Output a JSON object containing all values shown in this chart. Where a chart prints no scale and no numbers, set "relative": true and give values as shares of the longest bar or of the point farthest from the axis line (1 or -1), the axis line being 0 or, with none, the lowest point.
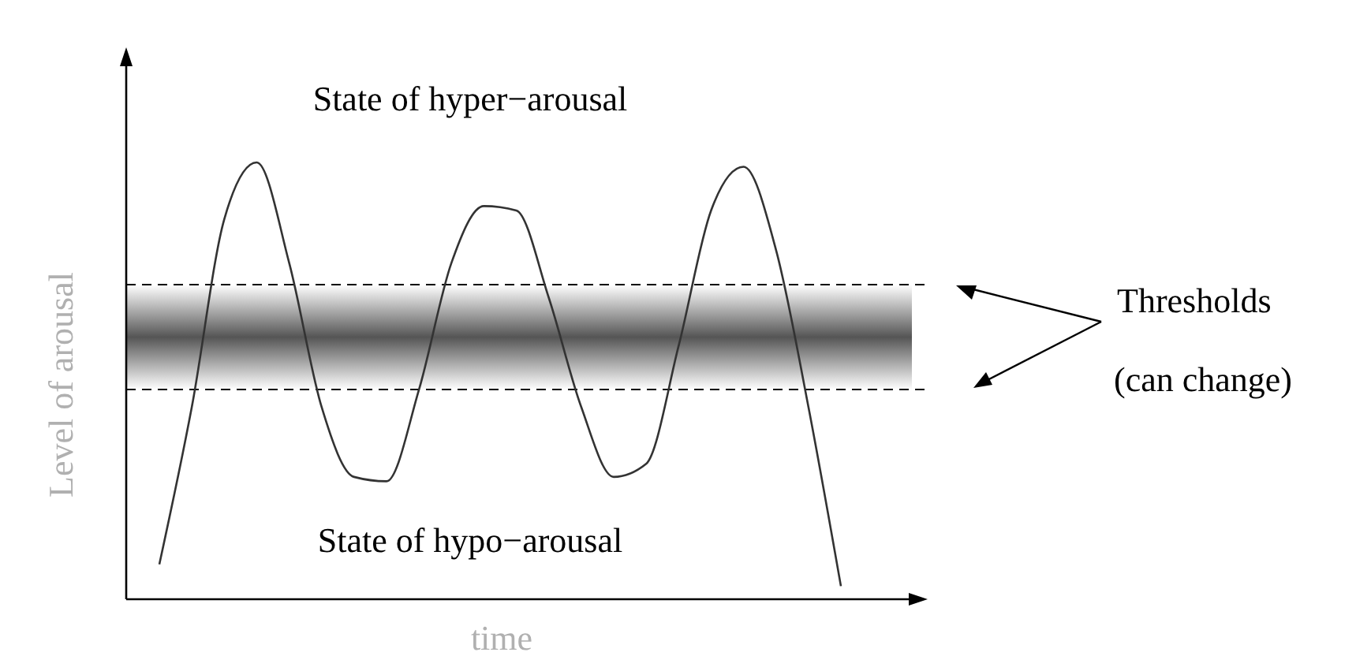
{
  "chart_data": {
    "type": "line",
    "relative": true,
    "xlabel": "time",
    "ylabel": "Level of arousal",
    "categories": [
      null,
      null,
      null,
      null,
      null,
      null,
      null,
      null,
      null,
      null,
      null,
      null,
      null,
      null,
      null,
      null,
      null,
      null,
      null,
      null,
      null,
      null
    ],
    "series": [
      {
        "color": "#333333",
        "values": [
          0.08,
          0.44,
          0.87,
          1.0,
          0.77,
          0.44,
          0.28,
          0.27,
          0.48,
          0.77,
          0.9,
          0.89,
          0.69,
          0.44,
          0.28,
          0.31,
          0.58,
          0.89,
          0.99,
          0.8,
          0.44,
          0.03
        ]
      }
    ],
    "ref_lines": [
      {
        "axis": "y",
        "value": 0.72,
        "line_style": "dashed",
        "color": "#000000"
      },
      {
        "axis": "y",
        "value": 0.48,
        "line_style": "dashed",
        "color": "#000000"
      }
    ],
    "bands": [
      {
        "axis": "y",
        "from": 0.48,
        "to": 0.72,
        "color": "#555555"
      }
    ],
    "annotations": [
      "State of hyper−arousal",
      "State of hypo−arousal",
      "Thresholds\n(can change)"
    ],
    "marker": "none",
    "line_style": "solid"
  }
}
